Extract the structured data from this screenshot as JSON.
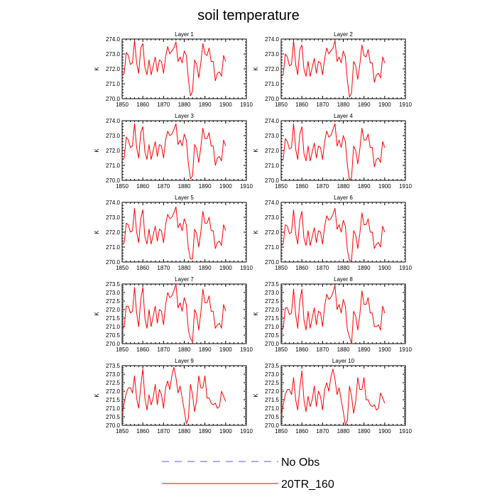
{
  "title": "soil temperature",
  "colors": {
    "model": "#ff0000",
    "obs": "#5b5bd6",
    "axis": "#000000"
  },
  "legend": {
    "entries": [
      {
        "label": "No Obs",
        "style": "dashed",
        "color": "#5b5bd6"
      },
      {
        "label": "20TR_160",
        "style": "solid",
        "color": "#ff0000"
      }
    ]
  },
  "chart_data": [
    {
      "type": "line",
      "title": "Layer 1",
      "ylabel": "K",
      "xlim": [
        1850,
        1910
      ],
      "ylim": [
        270.0,
        274.0
      ],
      "x_ticks": [
        1850,
        1860,
        1870,
        1880,
        1890,
        1900,
        1910
      ],
      "x_tick_labels": [
        "1850",
        "1860",
        "1870",
        "1880",
        "1890",
        "1900",
        "1910"
      ],
      "y_ticks": [
        270.0,
        271.0,
        272.0,
        273.0,
        274.0
      ],
      "y_tick_labels": [
        "270.0",
        "271.0",
        "272.0",
        "273.0",
        "274.0"
      ],
      "series": [
        {
          "name": "20TR_160",
          "color": "#ff0000",
          "x_start": 1850,
          "x_step": 1,
          "values": [
            271.6,
            271.7,
            273.1,
            272.9,
            272.3,
            272.4,
            273.9,
            272.4,
            271.7,
            273.4,
            273.7,
            272.1,
            271.6,
            272.6,
            271.6,
            272.2,
            272.8,
            271.8,
            272.6,
            272.5,
            271.7,
            272.8,
            273.5,
            273.0,
            273.2,
            273.4,
            273.8,
            272.5,
            272.8,
            272.4,
            273.2,
            272.9,
            271.3,
            270.2,
            270.5,
            272.6,
            272.3,
            271.4,
            272.4,
            273.7,
            273.0,
            272.9,
            273.4,
            272.5,
            272.5,
            271.2,
            271.7,
            271.8,
            271.5,
            272.9,
            272.5
          ]
        }
      ]
    },
    {
      "type": "line",
      "title": "Layer 2",
      "ylabel": "K",
      "xlim": [
        1850,
        1910
      ],
      "ylim": [
        270.0,
        274.0
      ],
      "x_ticks": [
        1850,
        1860,
        1870,
        1880,
        1890,
        1900,
        1910
      ],
      "x_tick_labels": [
        "1850",
        "1860",
        "1870",
        "1880",
        "1890",
        "1900",
        "1910"
      ],
      "y_ticks": [
        270.0,
        271.0,
        272.0,
        273.0,
        274.0
      ],
      "y_tick_labels": [
        "270.0",
        "271.0",
        "272.0",
        "273.0",
        "274.0"
      ],
      "series": [
        {
          "name": "20TR_160",
          "color": "#ff0000",
          "x_start": 1850,
          "x_step": 1,
          "values": [
            271.5,
            271.6,
            273.0,
            272.8,
            272.2,
            272.3,
            273.9,
            272.3,
            271.6,
            273.3,
            273.6,
            272.0,
            271.5,
            272.5,
            271.5,
            272.1,
            272.7,
            271.7,
            272.5,
            272.4,
            271.6,
            272.7,
            273.4,
            273.0,
            273.2,
            273.4,
            273.9,
            272.5,
            272.8,
            272.4,
            273.2,
            272.8,
            271.2,
            270.1,
            270.4,
            272.5,
            272.2,
            271.3,
            272.3,
            273.6,
            272.9,
            272.8,
            273.3,
            272.4,
            272.4,
            271.1,
            271.6,
            271.7,
            271.4,
            272.8,
            272.4
          ]
        }
      ]
    },
    {
      "type": "line",
      "title": "Layer 3",
      "ylabel": "K",
      "xlim": [
        1850,
        1910
      ],
      "ylim": [
        270.0,
        274.0
      ],
      "x_ticks": [
        1850,
        1860,
        1870,
        1880,
        1890,
        1900,
        1910
      ],
      "x_tick_labels": [
        "1850",
        "1860",
        "1870",
        "1880",
        "1890",
        "1900",
        "1910"
      ],
      "y_ticks": [
        270.0,
        271.0,
        272.0,
        273.0,
        274.0
      ],
      "y_tick_labels": [
        "270.0",
        "271.0",
        "272.0",
        "273.0",
        "274.0"
      ],
      "series": [
        {
          "name": "20TR_160",
          "color": "#ff0000",
          "x_start": 1850,
          "x_step": 1,
          "values": [
            271.4,
            271.5,
            272.9,
            272.7,
            272.2,
            272.3,
            273.8,
            272.2,
            271.5,
            273.2,
            273.6,
            271.9,
            271.4,
            272.4,
            271.4,
            272.0,
            272.6,
            271.6,
            272.4,
            272.3,
            271.5,
            272.7,
            273.3,
            273.0,
            273.1,
            273.4,
            273.8,
            272.4,
            272.7,
            272.3,
            273.1,
            272.7,
            271.1,
            270.1,
            270.3,
            272.4,
            272.1,
            271.2,
            272.2,
            273.5,
            272.8,
            272.8,
            273.2,
            272.3,
            272.3,
            271.0,
            271.5,
            271.6,
            271.3,
            272.7,
            272.3
          ]
        }
      ]
    },
    {
      "type": "line",
      "title": "Layer 4",
      "ylabel": "K",
      "xlim": [
        1850,
        1910
      ],
      "ylim": [
        270.0,
        274.0
      ],
      "x_ticks": [
        1850,
        1860,
        1870,
        1880,
        1890,
        1900,
        1910
      ],
      "x_tick_labels": [
        "1850",
        "1860",
        "1870",
        "1880",
        "1890",
        "1900",
        "1910"
      ],
      "y_ticks": [
        270.0,
        271.0,
        272.0,
        273.0,
        274.0
      ],
      "y_tick_labels": [
        "270.0",
        "271.0",
        "272.0",
        "273.0",
        "274.0"
      ],
      "series": [
        {
          "name": "20TR_160",
          "color": "#ff0000",
          "x_start": 1850,
          "x_step": 1,
          "values": [
            271.3,
            271.4,
            272.8,
            272.6,
            272.1,
            272.2,
            273.8,
            272.1,
            271.4,
            273.1,
            273.6,
            271.8,
            271.3,
            272.3,
            271.3,
            271.9,
            272.5,
            271.5,
            272.3,
            272.2,
            271.4,
            272.6,
            273.3,
            272.9,
            273.0,
            273.4,
            273.8,
            272.3,
            272.7,
            272.2,
            273.0,
            272.6,
            271.0,
            270.0,
            270.2,
            272.3,
            272.0,
            271.1,
            272.1,
            273.5,
            272.7,
            272.7,
            273.1,
            272.2,
            272.2,
            270.9,
            271.4,
            271.5,
            271.2,
            272.6,
            272.2
          ]
        }
      ]
    },
    {
      "type": "line",
      "title": "Layer 5",
      "ylabel": "K",
      "xlim": [
        1850,
        1910
      ],
      "ylim": [
        270.0,
        274.0
      ],
      "x_ticks": [
        1850,
        1860,
        1870,
        1880,
        1890,
        1900,
        1910
      ],
      "x_tick_labels": [
        "1850",
        "1860",
        "1870",
        "1880",
        "1890",
        "1900",
        "1910"
      ],
      "y_ticks": [
        270.0,
        271.0,
        272.0,
        273.0,
        274.0
      ],
      "y_tick_labels": [
        "270.0",
        "271.0",
        "272.0",
        "273.0",
        "274.0"
      ],
      "series": [
        {
          "name": "20TR_160",
          "color": "#ff0000",
          "x_start": 1850,
          "x_step": 1,
          "values": [
            271.2,
            271.3,
            272.6,
            272.5,
            272.0,
            272.1,
            273.6,
            272.0,
            271.3,
            272.9,
            273.5,
            271.7,
            271.2,
            272.2,
            271.2,
            271.8,
            272.4,
            271.4,
            272.2,
            272.1,
            271.3,
            272.5,
            273.2,
            272.9,
            273.0,
            273.3,
            273.7,
            272.3,
            272.6,
            272.1,
            272.9,
            272.5,
            270.9,
            270.2,
            270.2,
            272.2,
            271.9,
            271.0,
            272.0,
            273.4,
            272.6,
            272.6,
            273.0,
            272.1,
            272.1,
            270.9,
            271.3,
            271.4,
            271.1,
            272.5,
            272.1
          ]
        }
      ]
    },
    {
      "type": "line",
      "title": "Layer 6",
      "ylabel": "K",
      "xlim": [
        1850,
        1910
      ],
      "ylim": [
        270.0,
        274.0
      ],
      "x_ticks": [
        1850,
        1860,
        1870,
        1880,
        1890,
        1900,
        1910
      ],
      "x_tick_labels": [
        "1850",
        "1860",
        "1870",
        "1880",
        "1890",
        "1900",
        "1910"
      ],
      "y_ticks": [
        270.0,
        271.0,
        272.0,
        273.0,
        274.0
      ],
      "y_tick_labels": [
        "270.0",
        "271.0",
        "272.0",
        "273.0",
        "274.0"
      ],
      "series": [
        {
          "name": "20TR_160",
          "color": "#ff0000",
          "x_start": 1850,
          "x_step": 1,
          "values": [
            271.1,
            271.2,
            272.5,
            272.4,
            271.9,
            272.0,
            273.5,
            271.9,
            271.2,
            272.8,
            273.4,
            271.6,
            271.1,
            272.1,
            271.1,
            271.7,
            272.3,
            271.3,
            272.1,
            272.0,
            271.2,
            272.4,
            273.1,
            272.8,
            272.9,
            273.2,
            273.6,
            272.2,
            272.5,
            272.0,
            272.8,
            272.4,
            270.8,
            270.1,
            270.1,
            272.1,
            271.8,
            270.9,
            271.9,
            273.3,
            272.5,
            272.5,
            272.9,
            272.0,
            272.0,
            270.9,
            271.2,
            271.3,
            271.0,
            272.4,
            272.0
          ]
        }
      ]
    },
    {
      "type": "line",
      "title": "Layer 7",
      "ylabel": "K",
      "xlim": [
        1850,
        1910
      ],
      "ylim": [
        270.0,
        273.5
      ],
      "x_ticks": [
        1850,
        1860,
        1870,
        1880,
        1890,
        1900,
        1910
      ],
      "x_tick_labels": [
        "1850",
        "1860",
        "1870",
        "1880",
        "1890",
        "1900",
        "1910"
      ],
      "y_ticks": [
        270.0,
        270.5,
        271.0,
        271.5,
        272.0,
        272.5,
        273.0,
        273.5
      ],
      "y_tick_labels": [
        "270.0",
        "270.5",
        "271.0",
        "271.5",
        "272.0",
        "272.5",
        "273.0",
        "273.5"
      ],
      "series": [
        {
          "name": "20TR_160",
          "color": "#ff0000",
          "x_start": 1850,
          "x_step": 1,
          "values": [
            270.9,
            271.0,
            272.2,
            272.2,
            271.8,
            271.9,
            273.3,
            271.8,
            271.0,
            272.6,
            273.3,
            271.5,
            270.9,
            272.0,
            271.0,
            271.6,
            272.2,
            271.2,
            272.0,
            271.9,
            271.1,
            272.3,
            273.0,
            272.7,
            272.8,
            273.1,
            273.5,
            272.1,
            272.4,
            271.9,
            272.7,
            272.3,
            270.8,
            270.3,
            270.1,
            272.0,
            271.7,
            270.8,
            271.8,
            273.2,
            272.4,
            272.4,
            272.8,
            271.9,
            271.9,
            270.9,
            271.1,
            271.2,
            270.9,
            272.3,
            271.9
          ]
        }
      ]
    },
    {
      "type": "line",
      "title": "Layer 8",
      "ylabel": "K",
      "xlim": [
        1850,
        1910
      ],
      "ylim": [
        270.0,
        273.5
      ],
      "x_ticks": [
        1850,
        1860,
        1870,
        1880,
        1890,
        1900,
        1910
      ],
      "x_tick_labels": [
        "1850",
        "1860",
        "1870",
        "1880",
        "1890",
        "1900",
        "1910"
      ],
      "y_ticks": [
        270.0,
        270.5,
        271.0,
        271.5,
        272.0,
        272.5,
        273.0,
        273.5
      ],
      "y_tick_labels": [
        "270.0",
        "270.5",
        "271.0",
        "271.5",
        "272.0",
        "272.5",
        "273.0",
        "273.5"
      ],
      "series": [
        {
          "name": "20TR_160",
          "color": "#ff0000",
          "x_start": 1850,
          "x_step": 1,
          "values": [
            270.8,
            270.9,
            272.1,
            272.1,
            271.7,
            271.8,
            273.2,
            271.7,
            270.9,
            272.5,
            273.2,
            271.4,
            270.8,
            271.9,
            270.9,
            271.5,
            272.1,
            271.1,
            271.9,
            271.8,
            271.0,
            272.2,
            272.9,
            272.6,
            272.7,
            273.0,
            273.4,
            272.0,
            272.3,
            271.8,
            272.6,
            272.2,
            270.8,
            270.4,
            270.0,
            271.9,
            271.6,
            270.8,
            271.7,
            273.1,
            272.3,
            272.3,
            272.7,
            271.8,
            271.8,
            271.0,
            271.0,
            271.1,
            270.8,
            272.2,
            271.8
          ]
        }
      ]
    },
    {
      "type": "line",
      "title": "Layer 9",
      "ylabel": "K",
      "xlim": [
        1850,
        1910
      ],
      "ylim": [
        270.0,
        273.5
      ],
      "x_ticks": [
        1850,
        1860,
        1870,
        1880,
        1890,
        1900,
        1910
      ],
      "x_tick_labels": [
        "1850",
        "1860",
        "1870",
        "1880",
        "1890",
        "1900",
        "1910"
      ],
      "y_ticks": [
        270.0,
        270.5,
        271.0,
        271.5,
        272.0,
        272.5,
        273.0,
        273.5
      ],
      "y_tick_labels": [
        "270.0",
        "270.5",
        "271.0",
        "271.5",
        "272.0",
        "272.5",
        "273.0",
        "273.5"
      ],
      "series": [
        {
          "name": "20TR_160",
          "color": "#ff0000",
          "x_start": 1850,
          "x_step": 1,
          "values": [
            270.7,
            271.3,
            271.9,
            272.2,
            272.2,
            271.9,
            272.9,
            271.6,
            271.0,
            272.3,
            273.3,
            271.6,
            270.9,
            271.8,
            271.2,
            271.6,
            272.4,
            271.2,
            272.1,
            271.8,
            271.0,
            272.2,
            272.6,
            272.1,
            272.9,
            273.4,
            272.8,
            271.9,
            272.3,
            271.6,
            270.9,
            270.1,
            270.4,
            272.4,
            271.8,
            270.8,
            271.5,
            272.9,
            272.2,
            272.2,
            272.9,
            271.6,
            271.6,
            271.3,
            271.2,
            271.3,
            271.0,
            271.1,
            272.0,
            271.7,
            271.4
          ]
        }
      ]
    },
    {
      "type": "line",
      "title": "Layer 10",
      "ylabel": "K",
      "xlim": [
        1850,
        1910
      ],
      "ylim": [
        270.0,
        273.5
      ],
      "x_ticks": [
        1850,
        1860,
        1870,
        1880,
        1890,
        1900,
        1910
      ],
      "x_tick_labels": [
        "1850",
        "1860",
        "1870",
        "1880",
        "1890",
        "1900",
        "1910"
      ],
      "y_ticks": [
        270.0,
        270.5,
        271.0,
        271.5,
        272.0,
        272.5,
        273.0,
        273.5
      ],
      "y_tick_labels": [
        "270.0",
        "270.5",
        "271.0",
        "271.5",
        "272.0",
        "272.5",
        "273.0",
        "273.5"
      ],
      "series": [
        {
          "name": "20TR_160",
          "color": "#ff0000",
          "x_start": 1850,
          "x_step": 1,
          "values": [
            270.6,
            271.2,
            271.8,
            272.1,
            272.1,
            271.8,
            272.8,
            271.5,
            270.9,
            272.2,
            273.2,
            271.5,
            270.8,
            271.7,
            271.1,
            271.5,
            272.3,
            271.1,
            272.0,
            271.7,
            270.9,
            272.1,
            272.5,
            272.0,
            272.8,
            273.3,
            272.7,
            271.8,
            272.2,
            271.5,
            270.8,
            270.0,
            270.3,
            272.3,
            271.7,
            270.7,
            271.4,
            272.8,
            272.1,
            272.1,
            272.8,
            271.5,
            271.5,
            271.2,
            271.1,
            271.2,
            270.9,
            271.0,
            271.9,
            271.6,
            271.3
          ]
        }
      ]
    }
  ]
}
